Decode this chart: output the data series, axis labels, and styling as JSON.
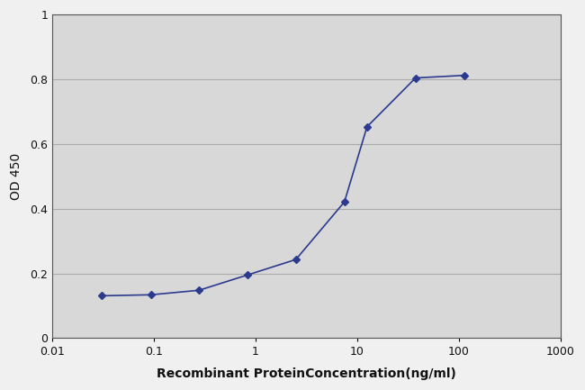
{
  "x_values": [
    0.031,
    0.094,
    0.28,
    0.83,
    2.5,
    7.5,
    12.5,
    37.5,
    112.5
  ],
  "y_values": [
    0.131,
    0.134,
    0.148,
    0.195,
    0.243,
    0.421,
    0.653,
    0.804,
    0.812
  ],
  "xlabel": "Recombinant ProteinConcentration(ng/ml)",
  "ylabel": "OD 450",
  "xlim": [
    0.01,
    1000
  ],
  "ylim": [
    0,
    1
  ],
  "yticks": [
    0,
    0.2,
    0.4,
    0.6,
    0.8,
    1
  ],
  "ytick_labels": [
    "0",
    "0.2",
    "0.4",
    "0.6",
    "0.8",
    "1"
  ],
  "xtick_labels": [
    "0.01",
    "0.1",
    "1",
    "10",
    "100",
    "1000"
  ],
  "line_color": "#2b3a8f",
  "marker": "D",
  "marker_size": 4,
  "line_width": 1.2,
  "plot_bg_color": "#d8d8d8",
  "fig_bg_color": "#f0f0f0",
  "grid_color": "#aaaaaa",
  "grid_linewidth": 0.8,
  "tick_fontsize": 9,
  "label_fontsize": 10
}
